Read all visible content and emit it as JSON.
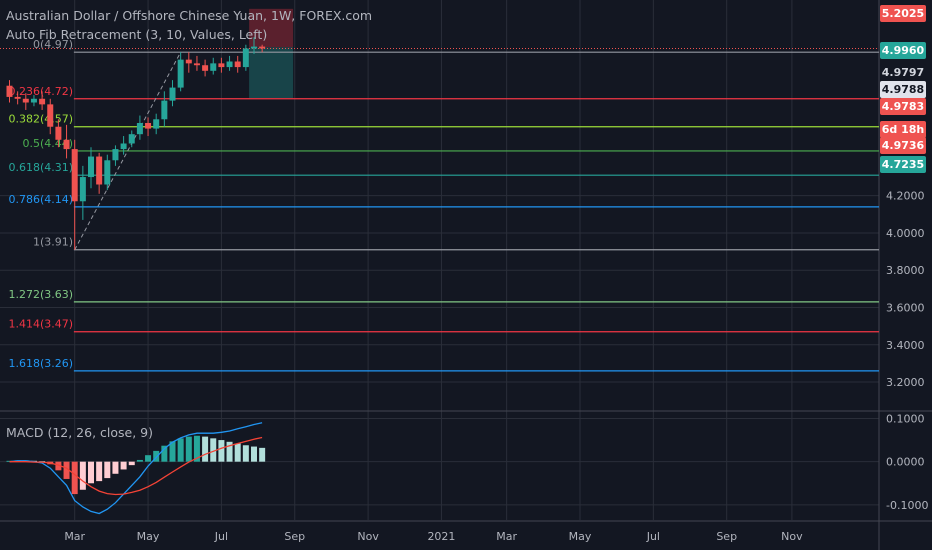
{
  "header": {
    "title": "Australian Dollar / Offshore Chinese Yuan, 1W, FOREX.com",
    "indicator": "Auto Fib Retracement (3, 10, Values, Left)",
    "macd_label": "MACD (12, 26, close, 9)"
  },
  "colors": {
    "background": "#131722",
    "grid": "#2a2e39",
    "up": "#26a69a",
    "down": "#ef5350",
    "axis_text": "#b2b5be",
    "macd_line": "#2196f3",
    "signal_line": "#f44336"
  },
  "chart_data": [
    {
      "type": "candlestick",
      "title": "Australian Dollar / Offshore Chinese Yuan, 1W, FOREX.com",
      "ylim": [
        3.05,
        5.25
      ],
      "y_ticks": [
        "3.2000",
        "3.4000",
        "3.6000",
        "3.8000",
        "4.0000",
        "4.2000"
      ],
      "x_ticks": [
        {
          "label": "Mar",
          "week": 8
        },
        {
          "label": "May",
          "week": 17
        },
        {
          "label": "Jul",
          "week": 26
        },
        {
          "label": "Sep",
          "week": 35
        },
        {
          "label": "Nov",
          "week": 44
        },
        {
          "label": "2021",
          "week": 53
        },
        {
          "label": "Mar",
          "week": 61
        },
        {
          "label": "May",
          "week": 70
        },
        {
          "label": "Jul",
          "week": 79
        },
        {
          "label": "Sep",
          "week": 88
        },
        {
          "label": "Nov",
          "week": 96
        }
      ],
      "candles": [
        [
          4.79,
          4.73,
          4.82,
          4.7
        ],
        [
          4.73,
          4.72,
          4.76,
          4.69
        ],
        [
          4.72,
          4.7,
          4.75,
          4.66
        ],
        [
          4.7,
          4.72,
          4.74,
          4.68
        ],
        [
          4.72,
          4.69,
          4.76,
          4.66
        ],
        [
          4.69,
          4.57,
          4.72,
          4.53
        ],
        [
          4.57,
          4.5,
          4.61,
          4.46
        ],
        [
          4.5,
          4.45,
          4.58,
          4.4
        ],
        [
          4.45,
          4.17,
          4.5,
          3.91
        ],
        [
          4.17,
          4.3,
          4.36,
          4.07
        ],
        [
          4.3,
          4.41,
          4.46,
          4.24
        ],
        [
          4.41,
          4.26,
          4.43,
          4.21
        ],
        [
          4.26,
          4.39,
          4.42,
          4.23
        ],
        [
          4.39,
          4.45,
          4.47,
          4.36
        ],
        [
          4.45,
          4.48,
          4.52,
          4.42
        ],
        [
          4.48,
          4.53,
          4.55,
          4.46
        ],
        [
          4.53,
          4.59,
          4.63,
          4.5
        ],
        [
          4.59,
          4.56,
          4.62,
          4.52
        ],
        [
          4.56,
          4.61,
          4.64,
          4.53
        ],
        [
          4.61,
          4.71,
          4.76,
          4.57
        ],
        [
          4.71,
          4.78,
          4.82,
          4.68
        ],
        [
          4.78,
          4.93,
          4.97,
          4.76
        ],
        [
          4.93,
          4.91,
          4.97,
          4.86
        ],
        [
          4.91,
          4.9,
          4.95,
          4.87
        ],
        [
          4.9,
          4.87,
          4.93,
          4.84
        ],
        [
          4.87,
          4.91,
          4.94,
          4.85
        ],
        [
          4.91,
          4.89,
          4.94,
          4.86
        ],
        [
          4.89,
          4.92,
          4.95,
          4.87
        ],
        [
          4.92,
          4.89,
          4.95,
          4.86
        ],
        [
          4.89,
          4.99,
          5.01,
          4.87
        ],
        [
          4.99,
          5.0,
          5.05,
          4.96
        ],
        [
          5.0,
          4.99,
          5.01,
          4.97
        ]
      ],
      "fib_levels": [
        {
          "label": "0(4.97)",
          "value": 4.97,
          "color": "#9598a1"
        },
        {
          "label": "0.236(4.72)",
          "value": 4.72,
          "color": "#f23645"
        },
        {
          "label": "0.382(4.57)",
          "value": 4.57,
          "color": "#9bdc3a"
        },
        {
          "label": "0.5(4.44)",
          "value": 4.44,
          "color": "#4caf50"
        },
        {
          "label": "0.618(4.31)",
          "value": 4.31,
          "color": "#26a69a"
        },
        {
          "label": "0.786(4.14)",
          "value": 4.14,
          "color": "#2196f3"
        },
        {
          "label": "1(3.91)",
          "value": 3.91,
          "color": "#9598a1"
        },
        {
          "label": "1.272(3.63)",
          "value": 3.63,
          "color": "#81c784"
        },
        {
          "label": "1.414(3.47)",
          "value": 3.47,
          "color": "#f23645"
        },
        {
          "label": "1.618(3.26)",
          "value": 3.26,
          "color": "#2196f3"
        }
      ],
      "position_box": {
        "entry": 4.996,
        "stop": 5.2025,
        "target": 4.7235
      },
      "price_tags": [
        {
          "text": "5.2025",
          "value": 5.2025,
          "bg": "#ef5350",
          "fg": "#ffffff"
        },
        {
          "text": "4.9960",
          "value": 4.996,
          "bg": "#26a69a",
          "fg": "#ffffff"
        },
        {
          "text": "4.9797",
          "value": 4.9797,
          "bg": "#131722",
          "fg": "#d1d4dc"
        },
        {
          "text": "4.9788",
          "value": 4.9788,
          "bg": "#e0e3eb",
          "fg": "#131722"
        },
        {
          "text": "4.9783",
          "value": 4.9783,
          "bg": "#ef5350",
          "fg": "#ffffff"
        },
        {
          "text": "6d 18h",
          "value": 4.96,
          "bg": "#ef5350",
          "fg": "#ffffff"
        },
        {
          "text": "4.9736",
          "value": 4.9736,
          "bg": "#ef5350",
          "fg": "#ffffff"
        },
        {
          "text": "4.7235",
          "value": 4.7235,
          "bg": "#26a69a",
          "fg": "#ffffff"
        }
      ]
    },
    {
      "type": "macd",
      "title": "MACD (12, 26, close, 9)",
      "ylim": [
        -0.135,
        0.115
      ],
      "y_ticks": [
        "0.1000",
        "0.0000",
        "-0.1000"
      ],
      "histogram": [
        0.002,
        0.003,
        0.003,
        0.002,
        0.001,
        -0.006,
        -0.02,
        -0.04,
        -0.075,
        -0.065,
        -0.05,
        -0.045,
        -0.038,
        -0.028,
        -0.018,
        -0.008,
        0.004,
        0.015,
        0.025,
        0.037,
        0.047,
        0.054,
        0.058,
        0.06,
        0.058,
        0.054,
        0.05,
        0.046,
        0.042,
        0.038,
        0.035,
        0.032
      ],
      "macd": [
        0.0,
        0.002,
        0.002,
        0.0,
        -0.003,
        -0.015,
        -0.035,
        -0.055,
        -0.09,
        -0.105,
        -0.115,
        -0.12,
        -0.11,
        -0.095,
        -0.075,
        -0.055,
        -0.035,
        -0.01,
        0.01,
        0.03,
        0.045,
        0.055,
        0.062,
        0.066,
        0.066,
        0.066,
        0.068,
        0.071,
        0.076,
        0.081,
        0.086,
        0.09
      ],
      "signal": [
        0.0,
        0.0,
        0.0,
        -0.001,
        -0.001,
        -0.003,
        -0.008,
        -0.015,
        -0.03,
        -0.045,
        -0.058,
        -0.068,
        -0.074,
        -0.076,
        -0.075,
        -0.071,
        -0.066,
        -0.058,
        -0.048,
        -0.036,
        -0.024,
        -0.012,
        -0.001,
        0.008,
        0.017,
        0.024,
        0.031,
        0.037,
        0.042,
        0.047,
        0.052,
        0.056
      ]
    }
  ]
}
